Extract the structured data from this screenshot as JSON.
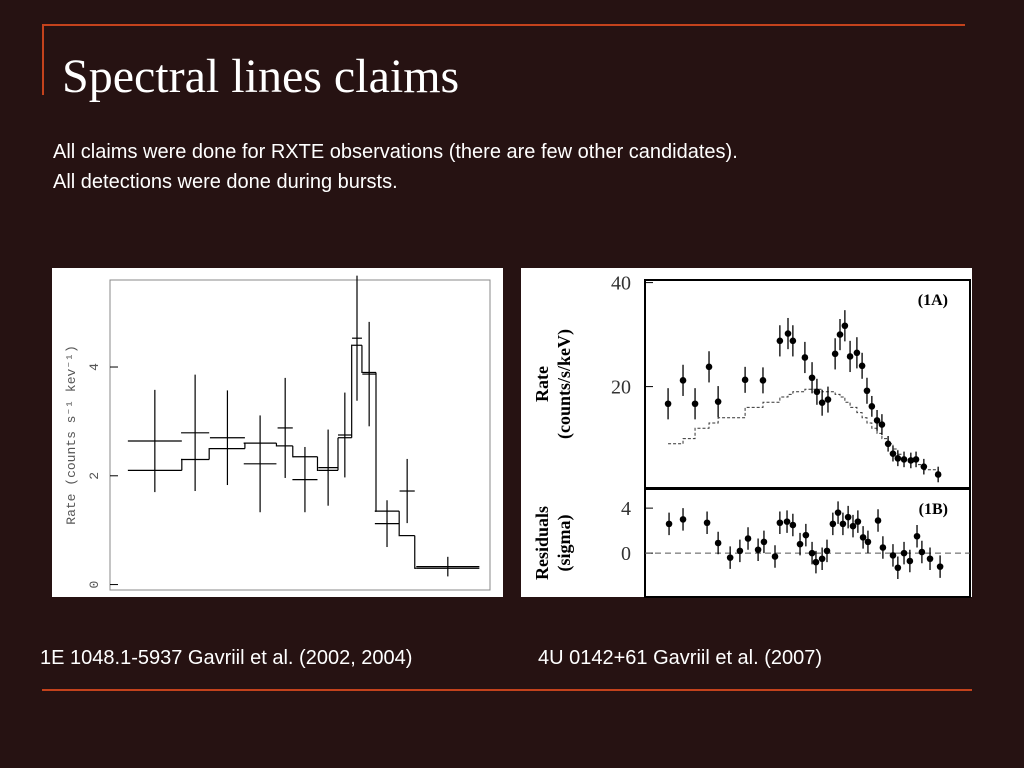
{
  "header": {
    "title": "Spectral lines claims"
  },
  "body": [
    "All claims were done for RXTE observations (there are few other candidates).",
    "All detections were done during bursts."
  ],
  "captions": [
    "1E 1048.1-5937 Gavriil et al. (2002, 2004)",
    "4U 0142+61 Gavriil et al. (2007)"
  ],
  "chart_data": [
    {
      "type": "errorbar",
      "ylabel": "Rate (counts s⁻¹ kev⁻¹)",
      "color": "#000000",
      "x": [
        1.18,
        2.24,
        3.09,
        3.95,
        4.61,
        5.13,
        5.74,
        6.18,
        6.5,
        6.82,
        7.29,
        7.82,
        8.89
      ],
      "xerr": [
        0.71,
        0.37,
        0.46,
        0.43,
        0.2,
        0.33,
        0.26,
        0.18,
        0.13,
        0.18,
        0.32,
        0.2,
        0.83
      ],
      "values": [
        2.64,
        2.79,
        2.7,
        2.22,
        2.88,
        1.93,
        2.15,
        2.75,
        4.53,
        3.87,
        1.12,
        1.72,
        0.33
      ],
      "yerr": [
        0.94,
        1.07,
        0.87,
        0.89,
        0.92,
        0.6,
        0.7,
        0.78,
        1.15,
        0.96,
        0.43,
        0.59,
        0.18
      ],
      "model": [
        2.1,
        2.3,
        2.5,
        2.6,
        2.55,
        2.35,
        2.1,
        2.7,
        4.4,
        3.9,
        1.35,
        0.9,
        0.3
      ],
      "xlim": [
        0,
        10
      ],
      "ylim": [
        -0.1,
        5.6
      ],
      "yticks": [
        0,
        2,
        4
      ]
    },
    {
      "type": "scatter",
      "ylabel": [
        "Rate",
        "(counts/s/keV)"
      ],
      "annotation": "(1A)",
      "color": "#000000",
      "x": [
        0.71,
        1.17,
        1.54,
        1.97,
        2.25,
        3.08,
        3.63,
        4.15,
        4.4,
        4.55,
        4.92,
        5.14,
        5.29,
        5.45,
        5.63,
        5.85,
        6.0,
        6.15,
        6.31,
        6.52,
        6.68,
        6.83,
        6.98,
        7.14,
        7.29,
        7.48,
        7.63,
        7.78,
        7.97,
        8.18,
        8.34,
        8.58,
        9.02
      ],
      "values": [
        16.7,
        21.2,
        16.7,
        23.8,
        17.1,
        21.3,
        21.2,
        28.8,
        30.2,
        28.8,
        25.6,
        21.7,
        19.0,
        16.9,
        17.5,
        26.3,
        30.0,
        31.7,
        25.8,
        26.5,
        24.0,
        19.2,
        16.2,
        13.5,
        12.7,
        9.0,
        7.1,
        6.2,
        6.0,
        5.8,
        6.0,
        4.6,
        3.1
      ],
      "yerr": [
        3,
        3,
        3,
        3,
        3,
        2.5,
        2.5,
        3,
        3,
        3,
        3,
        3,
        2.5,
        2.5,
        2.5,
        3,
        3,
        3,
        3,
        3,
        2.5,
        2.5,
        2,
        2,
        2,
        1.5,
        1.5,
        1.5,
        1.5,
        1.5,
        1.5,
        1.5,
        1.5
      ],
      "model": [
        9,
        10,
        12,
        13,
        14,
        16,
        17,
        18,
        18.5,
        19,
        19.5,
        19.5,
        19.5,
        19,
        19,
        18.5,
        18,
        17,
        16,
        15,
        14,
        13,
        12,
        11,
        10,
        9,
        8,
        7,
        6,
        5.5,
        5,
        4,
        3
      ],
      "xlim": [
        0,
        10
      ],
      "ylim": [
        0.5,
        40.5
      ],
      "yticks": [
        20,
        40
      ]
    },
    {
      "type": "scatter",
      "ylabel": [
        "Residuals",
        "(sigma)"
      ],
      "annotation": "(1B)",
      "color": "#000000",
      "x": [
        0.74,
        1.17,
        1.91,
        2.25,
        2.62,
        2.92,
        3.17,
        3.48,
        3.66,
        4.0,
        4.15,
        4.37,
        4.55,
        4.77,
        4.95,
        5.14,
        5.26,
        5.45,
        5.6,
        5.78,
        5.94,
        6.09,
        6.25,
        6.4,
        6.55,
        6.71,
        6.86,
        7.17,
        7.32,
        7.63,
        7.78,
        7.97,
        8.15,
        8.37,
        8.52,
        8.77,
        9.08
      ],
      "values": [
        2.6,
        3.0,
        2.7,
        0.9,
        -0.4,
        0.2,
        1.3,
        0.3,
        1.0,
        -0.3,
        2.7,
        2.8,
        2.5,
        0.8,
        1.6,
        0.0,
        -0.8,
        -0.5,
        0.2,
        2.6,
        3.6,
        2.6,
        3.2,
        2.4,
        2.8,
        1.4,
        1.0,
        2.9,
        0.5,
        -0.2,
        -1.3,
        0.0,
        -0.7,
        1.5,
        0.1,
        -0.5,
        -1.2
      ],
      "yerr": [
        1,
        1,
        1,
        1,
        1,
        1,
        1,
        1,
        1,
        1,
        1,
        1,
        1,
        1,
        1,
        1,
        1,
        1,
        1,
        1,
        1,
        1,
        1,
        1,
        1,
        1,
        1,
        1,
        1,
        1,
        1,
        1,
        1,
        1,
        1,
        1,
        1
      ],
      "reference_line": 0,
      "xlim": [
        0,
        10
      ],
      "ylim": [
        -3.9,
        5.7
      ],
      "yticks": [
        0,
        4
      ]
    }
  ]
}
